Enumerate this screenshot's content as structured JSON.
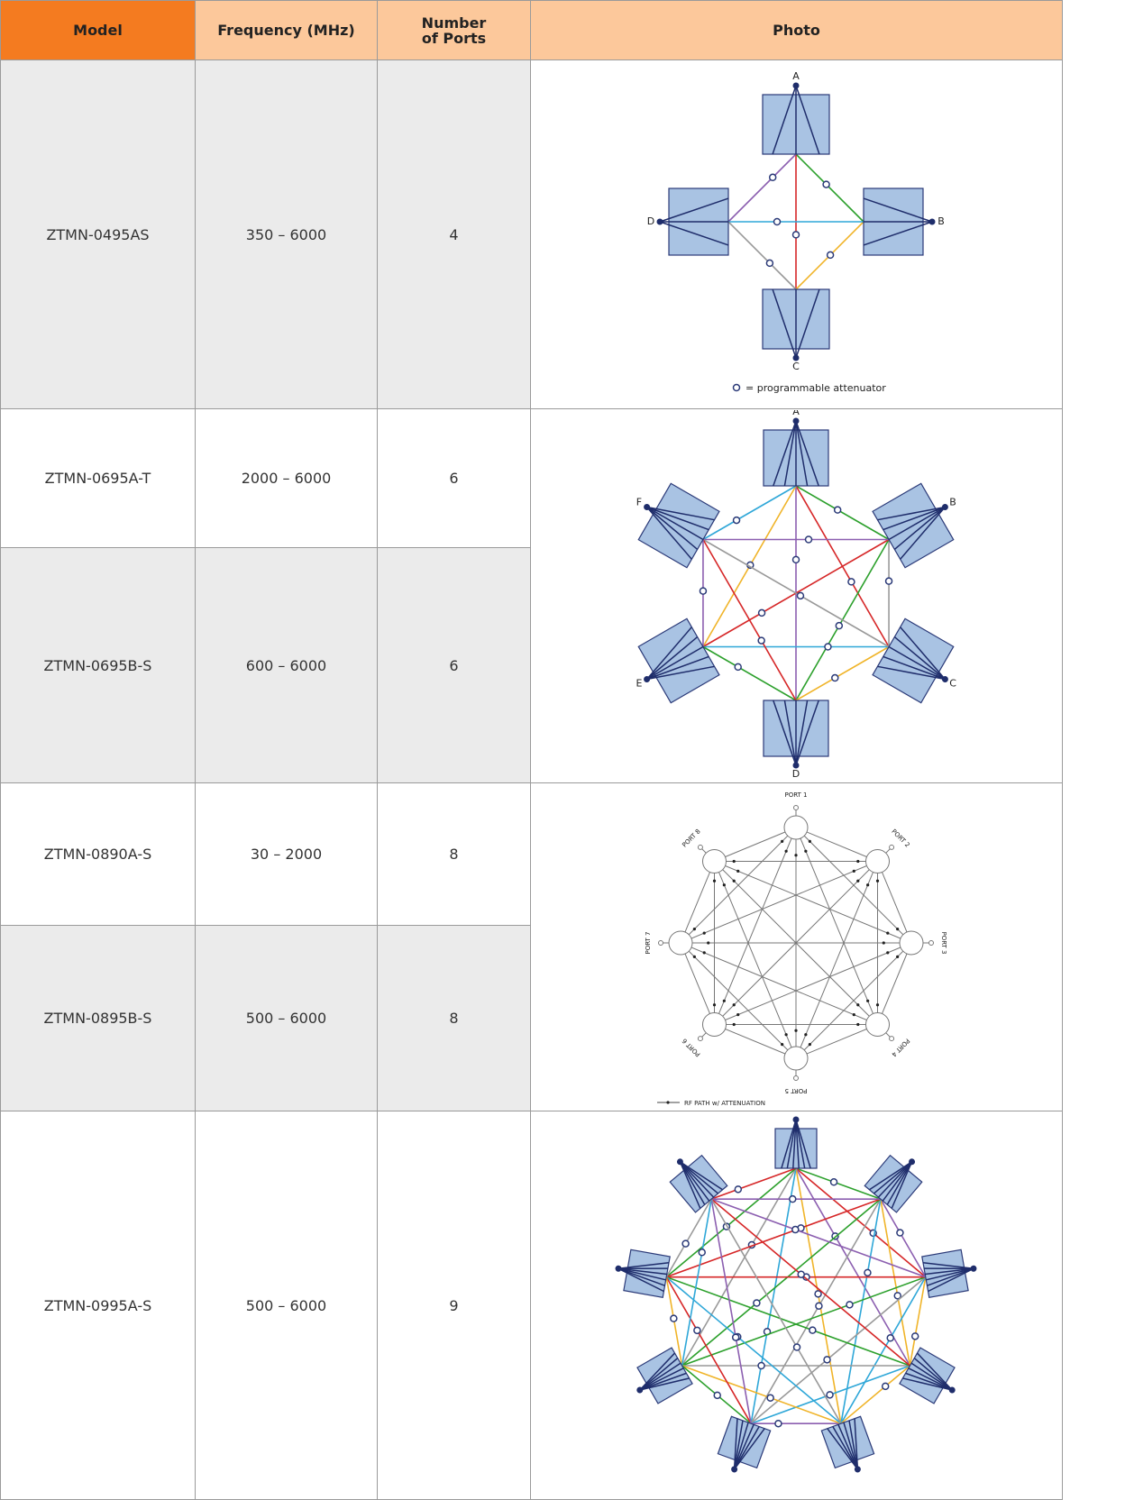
{
  "table": {
    "headers": [
      "Model",
      "Frequency (MHz)",
      "Number of Ports",
      "Photo"
    ],
    "rows": [
      {
        "model": "ZTMN-0495AS",
        "frequency": "350 – 6000",
        "ports": 4
      },
      {
        "model": "ZTMN-0695A-T",
        "frequency": "2000 – 6000",
        "ports": 6
      },
      {
        "model": "ZTMN-0695B-S",
        "frequency": "600 – 6000",
        "ports": 6
      },
      {
        "model": "ZTMN-0890A-S",
        "frequency": "30 – 2000",
        "ports": 8
      },
      {
        "model": "ZTMN-0895B-S",
        "frequency": "500 – 6000",
        "ports": 8
      },
      {
        "model": "ZTMN-0995A-S",
        "frequency": "500 – 6000",
        "ports": 9
      }
    ]
  },
  "diagrams": [
    {
      "port_labels": [
        "A",
        "B",
        "C",
        "D"
      ],
      "legend": "= programmable attenuator"
    },
    {
      "port_labels": [
        "A",
        "B",
        "C",
        "D",
        "E",
        "F"
      ]
    },
    {
      "port_labels": [
        "PORT 1",
        "PORT 2",
        "PORT 3",
        "PORT 4",
        "PORT 5",
        "PORT 6",
        "PORT 7",
        "PORT 8"
      ],
      "legend": "RF PATH w/ ATTENUATION"
    }
  ]
}
